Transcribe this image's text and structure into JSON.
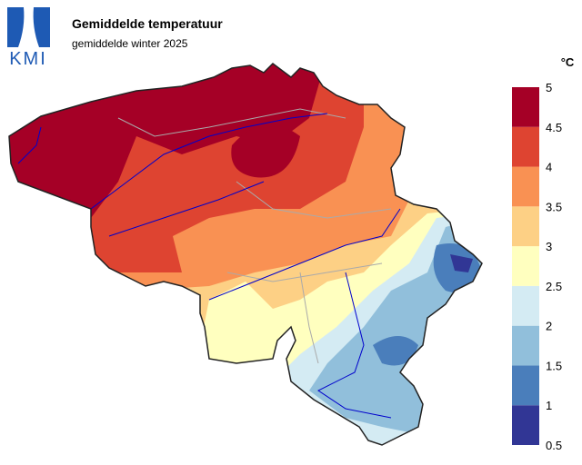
{
  "logo": "KMI",
  "title": "Gemiddelde temperatuur",
  "subtitle": "gemiddelde winter 2025",
  "legend": {
    "unit": "°C",
    "ticks": [
      0.5,
      1,
      1.5,
      2,
      2.5,
      3,
      3.5,
      4,
      4.5,
      5
    ],
    "colors": [
      "#313695",
      "#4a7ebb",
      "#91bfdb",
      "#d4ebf3",
      "#ffffbf",
      "#fdd085",
      "#f99153",
      "#de4431",
      "#a50026"
    ]
  }
}
